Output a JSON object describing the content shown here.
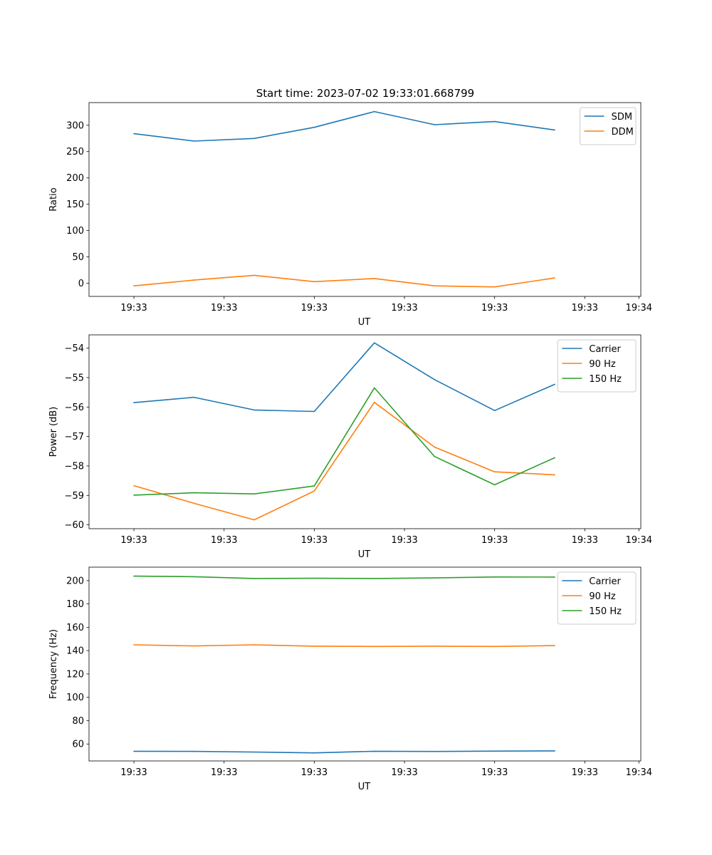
{
  "title": "Start time: 2023-07-02 19:33:01.668799",
  "colors": {
    "c0": "#1f77b4",
    "c1": "#ff7f0e",
    "c2": "#2ca02c"
  },
  "chart_data": [
    {
      "type": "line",
      "xlabel": "UT",
      "ylabel": "Ratio",
      "xticklabels": [
        "19:33",
        "19:33",
        "19:33",
        "19:33",
        "19:33",
        "19:33",
        "19:34"
      ],
      "x": [
        1,
        2,
        3,
        4,
        5,
        6,
        7,
        8
      ],
      "xlim": [
        0.2526,
        9.4316
      ],
      "ylim": [
        -25,
        343
      ],
      "yticks": [
        0,
        50,
        100,
        150,
        200,
        250,
        300
      ],
      "legend": "top-right",
      "series": [
        {
          "name": "SDM",
          "color": "#1f77b4",
          "values": [
            284,
            270,
            275,
            296,
            326,
            301,
            307,
            291
          ]
        },
        {
          "name": "DDM",
          "color": "#ff7f0e",
          "values": [
            -5,
            6,
            15,
            3,
            9,
            -5,
            -7,
            10
          ]
        }
      ]
    },
    {
      "type": "line",
      "xlabel": "UT",
      "ylabel": "Power (dB)",
      "xticklabels": [
        "19:33",
        "19:33",
        "19:33",
        "19:33",
        "19:33",
        "19:33",
        "19:34"
      ],
      "x": [
        1,
        2,
        3,
        4,
        5,
        6,
        7,
        8
      ],
      "xlim": [
        0.2526,
        9.4316
      ],
      "ylim": [
        -60.13,
        -53.55
      ],
      "yticks": [
        -60,
        -59,
        -58,
        -57,
        -56,
        -55,
        -54
      ],
      "legend": "top-right",
      "series": [
        {
          "name": "Carrier",
          "color": "#1f77b4",
          "values": [
            -55.85,
            -55.67,
            -56.1,
            -56.15,
            -53.82,
            -55.07,
            -56.12,
            -55.23
          ]
        },
        {
          "name": "90 Hz",
          "color": "#ff7f0e",
          "values": [
            -58.67,
            -59.27,
            -59.83,
            -58.85,
            -55.84,
            -57.36,
            -58.2,
            -58.3
          ]
        },
        {
          "name": "150 Hz",
          "color": "#2ca02c",
          "values": [
            -58.99,
            -58.91,
            -58.95,
            -58.68,
            -55.35,
            -57.68,
            -58.64,
            -57.72
          ]
        }
      ]
    },
    {
      "type": "line",
      "xlabel": "UT",
      "ylabel": "Frequency (Hz)",
      "xticklabels": [
        "19:33",
        "19:33",
        "19:33",
        "19:33",
        "19:33",
        "19:33",
        "19:34"
      ],
      "x": [
        1,
        2,
        3,
        4,
        5,
        6,
        7,
        8
      ],
      "xlim": [
        0.2526,
        9.4316
      ],
      "ylim": [
        45.5,
        211.5
      ],
      "yticks": [
        60,
        80,
        100,
        120,
        140,
        160,
        180,
        200
      ],
      "legend": "top-right",
      "series": [
        {
          "name": "Carrier",
          "color": "#1f77b4",
          "values": [
            53.8,
            53.7,
            53.1,
            52.4,
            53.8,
            53.6,
            53.9,
            54.1
          ]
        },
        {
          "name": "90 Hz",
          "color": "#ff7f0e",
          "values": [
            145,
            144,
            145,
            143.8,
            143.6,
            143.8,
            143.6,
            144.3
          ]
        },
        {
          "name": "150 Hz",
          "color": "#2ca02c",
          "values": [
            203.8,
            203.3,
            201.8,
            202,
            201.8,
            202.3,
            203.1,
            203
          ]
        }
      ]
    }
  ]
}
